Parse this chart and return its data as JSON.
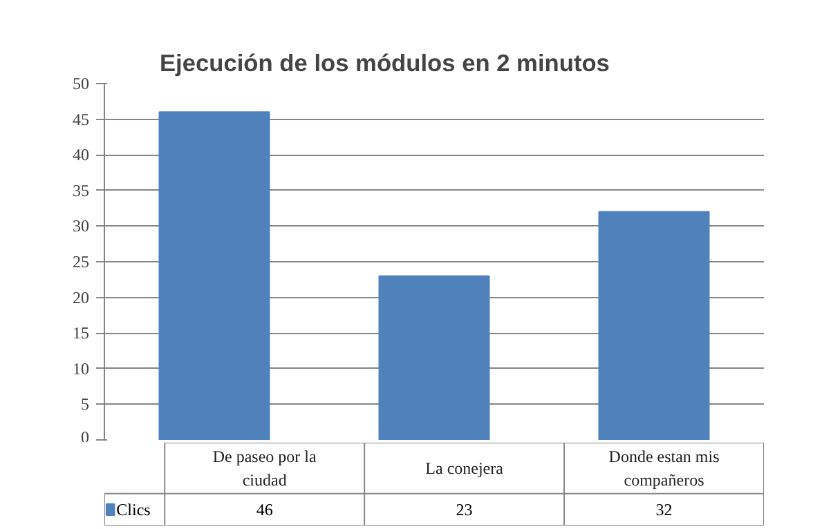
{
  "chart_data": {
    "type": "bar",
    "title": "Ejecución de los módulos en 2 minutos",
    "categories": [
      "De paseo por la ciudad",
      "La conejera",
      "Donde estan mis compañeros"
    ],
    "series": [
      {
        "name": "Clics",
        "color": "#4f81bd",
        "values": [
          46,
          23,
          32
        ]
      }
    ],
    "ylim": [
      0,
      50
    ],
    "yticks": [
      0,
      5,
      10,
      15,
      20,
      25,
      30,
      35,
      40,
      45,
      50
    ],
    "grid": "y",
    "legend": "bottom",
    "data_labels": true
  }
}
